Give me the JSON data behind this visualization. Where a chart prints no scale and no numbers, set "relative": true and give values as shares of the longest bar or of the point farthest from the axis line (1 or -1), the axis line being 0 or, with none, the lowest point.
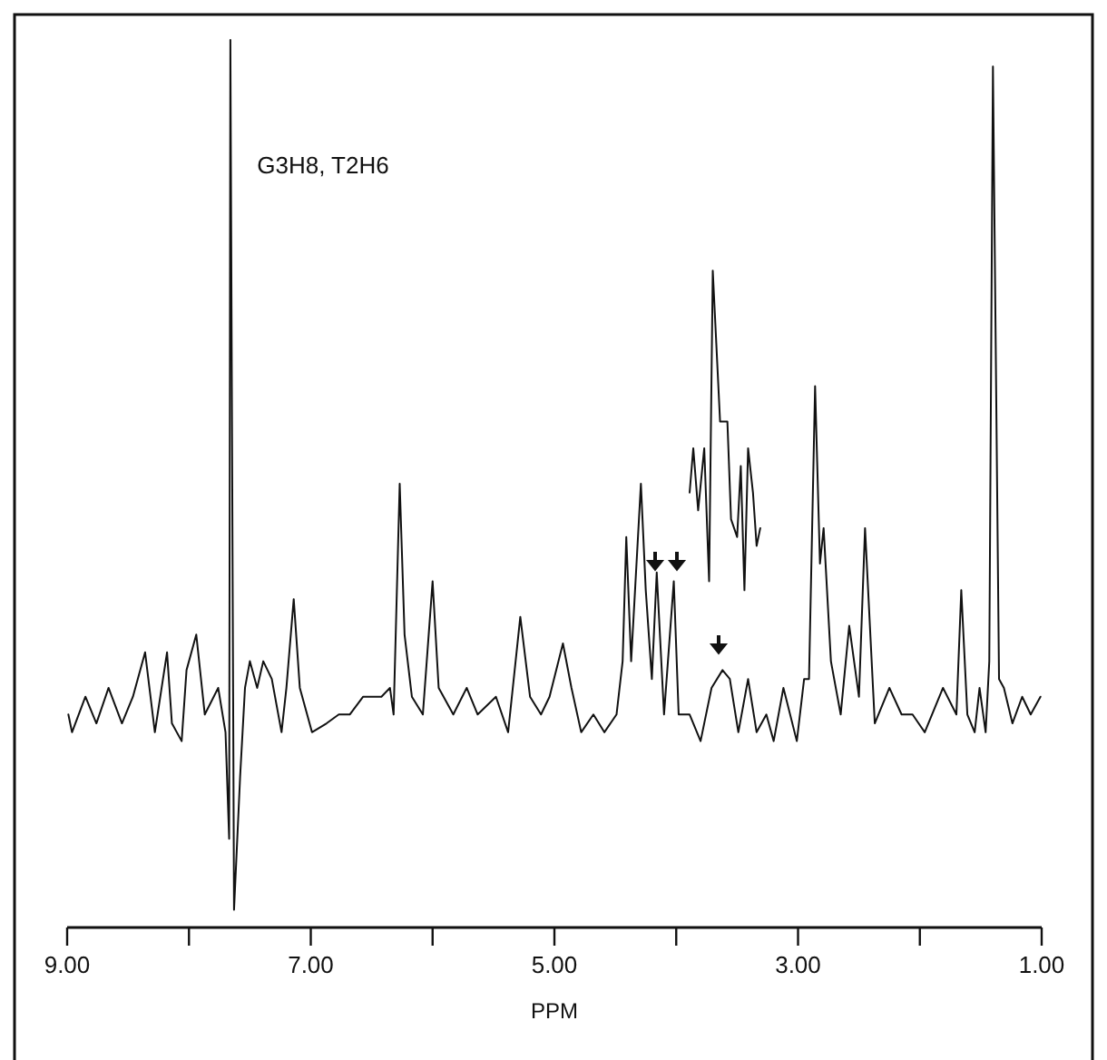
{
  "chart_data": {
    "type": "line",
    "relative": true,
    "xlabel": "PPM",
    "xlim": [
      9,
      1
    ],
    "xticks": [
      {
        "value": 9,
        "label": "9.00"
      },
      {
        "value": 8,
        "label": null
      },
      {
        "value": 7,
        "label": "7.00"
      },
      {
        "value": 6,
        "label": null
      },
      {
        "value": 5,
        "label": "5.00"
      },
      {
        "value": 4,
        "label": null
      },
      {
        "value": 3,
        "label": "3.00"
      },
      {
        "value": 2,
        "label": null
      },
      {
        "value": 1,
        "label": "1.00"
      }
    ],
    "tick_labels": "x",
    "grid": false,
    "marker": "none",
    "line_style": "solid",
    "annotations": [
      {
        "text": "G3H8, T2H6",
        "x": 7.65,
        "y": 0.86
      }
    ],
    "series": [
      {
        "color": "#111111",
        "x": [
          8.99,
          8.96,
          8.85,
          8.76,
          8.66,
          8.55,
          8.46,
          8.36,
          8.28,
          8.18,
          8.14,
          8.06,
          8.02,
          7.94,
          7.87,
          7.76,
          7.7,
          7.67,
          7.66,
          7.63,
          7.58,
          7.54,
          7.5,
          7.44,
          7.39,
          7.32,
          7.24,
          7.2,
          7.14,
          7.09,
          6.99,
          6.87,
          6.77,
          6.68,
          6.57,
          6.42,
          6.35,
          6.32,
          6.27,
          6.23,
          6.17,
          6.08,
          6.0,
          5.95,
          5.83,
          5.72,
          5.63,
          5.48,
          5.38,
          5.28,
          5.2,
          5.11,
          5.04,
          4.93,
          4.86,
          4.78,
          4.68,
          4.59,
          4.49,
          4.44,
          4.41,
          4.37,
          4.29,
          4.25,
          4.2,
          4.16,
          4.1,
          4.02,
          3.98,
          3.89,
          3.8,
          3.71,
          3.62,
          3.56,
          3.49,
          3.41,
          3.34,
          3.26,
          3.2,
          3.12,
          3.01,
          2.95,
          2.91,
          2.86,
          2.82,
          2.79,
          2.73,
          2.65,
          2.58,
          2.5,
          2.45,
          2.37,
          2.25,
          2.15,
          2.06,
          1.96,
          1.81,
          1.7,
          1.66,
          1.61,
          1.55,
          1.51,
          1.46,
          1.43,
          1.4,
          1.35,
          1.31,
          1.24,
          1.16,
          1.09,
          1.01
        ],
        "values": [
          0.24,
          0.22,
          0.26,
          0.23,
          0.27,
          0.23,
          0.26,
          0.31,
          0.22,
          0.31,
          0.23,
          0.21,
          0.29,
          0.33,
          0.24,
          0.27,
          0.22,
          0.1,
          1.0,
          0.02,
          0.17,
          0.27,
          0.3,
          0.27,
          0.3,
          0.28,
          0.22,
          0.27,
          0.37,
          0.27,
          0.22,
          0.23,
          0.24,
          0.24,
          0.26,
          0.26,
          0.27,
          0.24,
          0.5,
          0.33,
          0.26,
          0.24,
          0.39,
          0.27,
          0.24,
          0.27,
          0.24,
          0.26,
          0.22,
          0.35,
          0.26,
          0.24,
          0.26,
          0.32,
          0.27,
          0.22,
          0.24,
          0.22,
          0.24,
          0.3,
          0.44,
          0.3,
          0.5,
          0.38,
          0.28,
          0.4,
          0.24,
          0.39,
          0.24,
          0.24,
          0.21,
          0.27,
          0.29,
          0.28,
          0.22,
          0.28,
          0.22,
          0.24,
          0.21,
          0.27,
          0.21,
          0.28,
          0.28,
          0.61,
          0.41,
          0.45,
          0.3,
          0.24,
          0.34,
          0.26,
          0.45,
          0.23,
          0.27,
          0.24,
          0.24,
          0.22,
          0.27,
          0.24,
          0.38,
          0.24,
          0.22,
          0.27,
          0.22,
          0.3,
          0.97,
          0.28,
          0.27,
          0.23,
          0.26,
          0.24,
          0.26
        ]
      },
      {
        "color": "#111111",
        "x": [
          3.89,
          3.86,
          3.82,
          3.77,
          3.73,
          3.7,
          3.64,
          3.58,
          3.55,
          3.5,
          3.47,
          3.44,
          3.41,
          3.37,
          3.34,
          3.31
        ],
        "values": [
          0.49,
          0.54,
          0.47,
          0.54,
          0.39,
          0.74,
          0.57,
          0.57,
          0.46,
          0.44,
          0.52,
          0.38,
          0.54,
          0.49,
          0.43,
          0.45
        ]
      }
    ]
  }
}
